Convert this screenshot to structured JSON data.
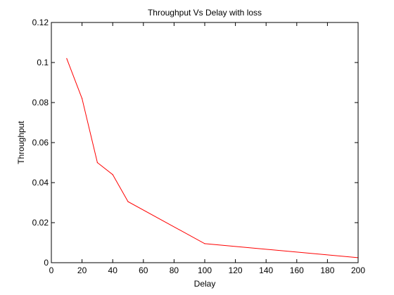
{
  "chart_data": {
    "type": "line",
    "title": "Throughput Vs Delay with loss",
    "xlabel": "Delay",
    "ylabel": "Throughput",
    "xlim": [
      0,
      200
    ],
    "ylim": [
      0,
      0.12
    ],
    "xticks": [
      0,
      20,
      40,
      60,
      80,
      100,
      120,
      140,
      160,
      180,
      200
    ],
    "xtick_labels": [
      "0",
      "20",
      "40",
      "60",
      "80",
      "100",
      "120",
      "140",
      "160",
      "180",
      "200"
    ],
    "yticks": [
      0,
      0.02,
      0.04,
      0.06,
      0.08,
      0.1,
      0.12
    ],
    "ytick_labels": [
      "0",
      "0.02",
      "0.04",
      "0.06",
      "0.08",
      "0.1",
      "0.12"
    ],
    "grid": false,
    "legend": false,
    "series": [
      {
        "color": "#ff0000",
        "x": [
          10,
          20,
          30,
          40,
          50,
          100,
          200
        ],
        "y": [
          0.102,
          0.082,
          0.05,
          0.044,
          0.0305,
          0.0095,
          0.0025
        ]
      }
    ]
  }
}
